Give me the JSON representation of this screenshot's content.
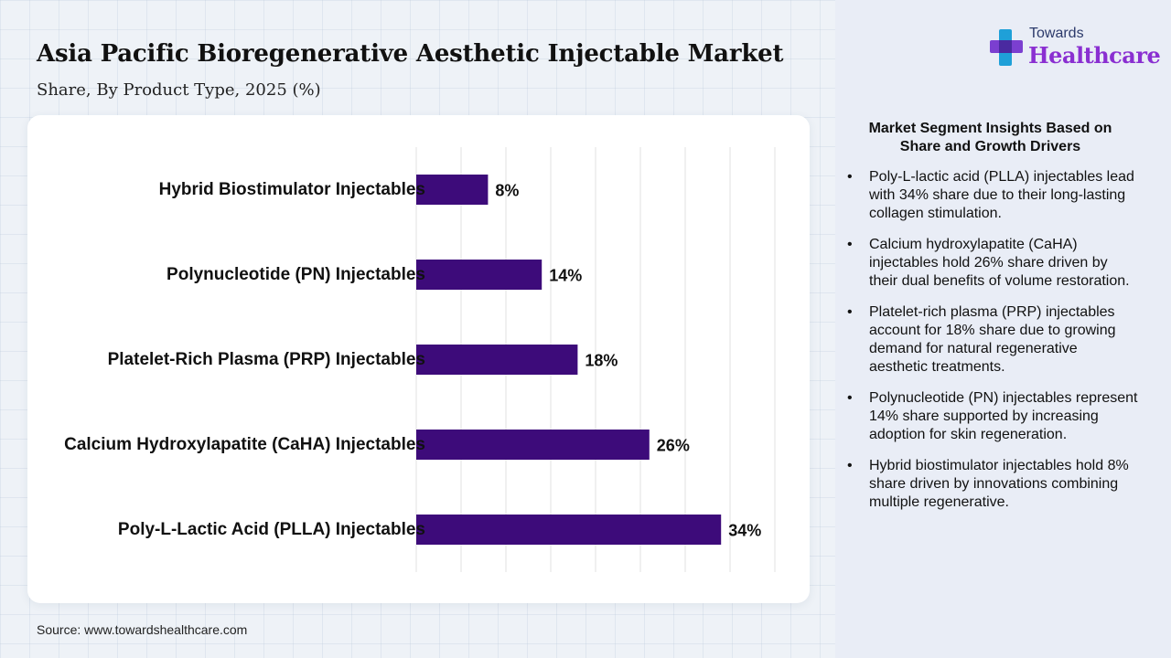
{
  "header": {
    "title": "Asia Pacific Bioregenerative Aesthetic Injectable Market",
    "subtitle": "Share, By Product Type, 2025 (%)"
  },
  "logo": {
    "top_text": "Towards",
    "main_text": "Healthcare",
    "icon": "plus-cross-logo-icon"
  },
  "chart_data": {
    "type": "bar",
    "orientation": "horizontal",
    "categories": [
      "Hybrid Biostimulator Injectables",
      "Polynucleotide (PN) Injectables",
      "Platelet-Rich Plasma (PRP) Injectables",
      "Calcium Hydroxylapatite (CaHA) Injectables",
      "Poly-L-Lactic Acid (PLLA) Injectables"
    ],
    "values": [
      8,
      14,
      18,
      26,
      34
    ],
    "data_labels": [
      "8%",
      "14%",
      "18%",
      "26%",
      "34%"
    ],
    "xlim": [
      0,
      40
    ],
    "grid": true,
    "bar_color": "#3d0b7a",
    "title": "Asia Pacific Bioregenerative Aesthetic Injectable Market",
    "subtitle": "Share, By Product Type, 2025 (%)"
  },
  "insights": {
    "heading": "Market Segment Insights Based on Share and Growth Drivers",
    "items": [
      "Poly-L-lactic acid (PLLA) injectables lead with 34% share due to their long-lasting collagen stimulation.",
      "Calcium hydroxylapatite (CaHA) injectables hold 26% share driven by their dual benefits of volume restoration.",
      "Platelet-rich plasma (PRP) injectables account for 18% share due to growing demand for natural regenerative aesthetic treatments.",
      "Polynucleotide (PN) injectables represent 14% share supported by increasing adoption for skin regeneration.",
      "Hybrid biostimulator injectables hold 8% share driven by innovations combining multiple regenerative."
    ]
  },
  "footer": {
    "source": "Source: www.towardshealthcare.com"
  }
}
